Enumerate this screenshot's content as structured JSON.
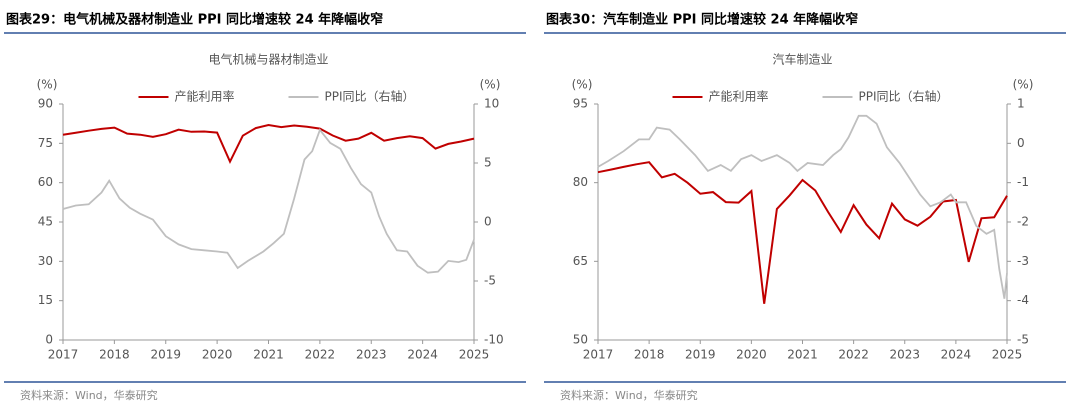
{
  "chart_data": [
    {
      "type": "line",
      "caption": "图表29：电气机械及器材制造业 PPI 同比增速较 24 年降幅收窄",
      "title": "电气机械与器材制造业",
      "source": "资料来源：Wind，华泰研究",
      "ylabel": "(%)",
      "y2label": "(%)",
      "xlim": [
        2017,
        2025
      ],
      "xticks": [
        2017,
        2018,
        2019,
        2020,
        2021,
        2022,
        2023,
        2024,
        2025
      ],
      "ylim": [
        0,
        90
      ],
      "yticks": [
        0,
        15,
        30,
        45,
        60,
        75,
        90
      ],
      "y2lim": [
        -10,
        10
      ],
      "y2ticks": [
        -10,
        -5,
        0,
        5,
        10
      ],
      "series": [
        {
          "name": "产能利用率",
          "color": "#c00000",
          "axis": "y",
          "x": [
            2017,
            2017.25,
            2017.5,
            2017.75,
            2018,
            2018.25,
            2018.5,
            2018.75,
            2019,
            2019.25,
            2019.5,
            2019.75,
            2020,
            2020.25,
            2020.5,
            2020.75,
            2021,
            2021.25,
            2021.5,
            2021.75,
            2022,
            2022.25,
            2022.5,
            2022.75,
            2023,
            2023.25,
            2023.5,
            2023.75,
            2024,
            2024.25,
            2024.5,
            2024.75,
            2025
          ],
          "values": [
            78.3,
            79,
            79.8,
            80.5,
            81,
            78.7,
            78.3,
            77.5,
            78.5,
            80.2,
            79.4,
            79.5,
            79.1,
            68,
            77.9,
            80.8,
            82,
            81.2,
            81.8,
            81.3,
            80.6,
            78,
            76,
            76.8,
            79,
            76,
            77,
            77.7,
            77,
            73,
            74.8,
            75.7,
            76.8
          ]
        },
        {
          "name": "PPI同比（右轴）",
          "color": "#bfbfbf",
          "axis": "y2",
          "x": [
            2017,
            2017.25,
            2017.5,
            2017.75,
            2017.9,
            2018.1,
            2018.3,
            2018.5,
            2018.75,
            2019,
            2019.25,
            2019.5,
            2019.75,
            2020,
            2020.2,
            2020.4,
            2020.6,
            2020.9,
            2021.1,
            2021.3,
            2021.5,
            2021.7,
            2021.85,
            2022,
            2022.2,
            2022.4,
            2022.6,
            2022.8,
            2023,
            2023.15,
            2023.3,
            2023.5,
            2023.7,
            2023.9,
            2024.1,
            2024.3,
            2024.5,
            2024.7,
            2024.85,
            2025
          ],
          "values": [
            1.1,
            1.4,
            1.5,
            2.5,
            3.5,
            2,
            1.2,
            0.7,
            0.2,
            -1.2,
            -1.9,
            -2.3,
            -2.4,
            -2.5,
            -2.6,
            -3.9,
            -3.3,
            -2.5,
            -1.8,
            -1,
            2,
            5.3,
            6,
            7.8,
            6.7,
            6.2,
            4.6,
            3.2,
            2.5,
            0.5,
            -1,
            -2.4,
            -2.5,
            -3.7,
            -4.3,
            -4.2,
            -3.3,
            -3.4,
            -3.2,
            -1.5
          ]
        }
      ]
    },
    {
      "type": "line",
      "caption": "图表30：汽车制造业 PPI 同比增速较 24 年降幅收窄",
      "title": "汽车制造业",
      "source": "资料来源：Wind，华泰研究",
      "ylabel": "(%)",
      "y2label": "(%)",
      "xlim": [
        2017,
        2025
      ],
      "xticks": [
        2017,
        2018,
        2019,
        2020,
        2021,
        2022,
        2023,
        2024,
        2025
      ],
      "ylim": [
        50,
        95
      ],
      "yticks": [
        50,
        65,
        80,
        95
      ],
      "y2lim": [
        -5,
        1
      ],
      "y2ticks": [
        -5,
        -4,
        -3,
        -2,
        -1,
        0,
        1
      ],
      "series": [
        {
          "name": "产能利用率",
          "color": "#c00000",
          "axis": "y",
          "x": [
            2017,
            2017.25,
            2017.5,
            2017.75,
            2018,
            2018.25,
            2018.5,
            2018.75,
            2019,
            2019.25,
            2019.5,
            2019.75,
            2020,
            2020.25,
            2020.5,
            2020.75,
            2021,
            2021.25,
            2021.5,
            2021.75,
            2022,
            2022.25,
            2022.5,
            2022.75,
            2023,
            2023.25,
            2023.5,
            2023.75,
            2024,
            2024.25,
            2024.5,
            2024.75,
            2025
          ],
          "values": [
            82,
            82.5,
            83,
            83.5,
            83.9,
            81,
            81.7,
            80,
            77.9,
            78.2,
            76.3,
            76.2,
            78.4,
            56.9,
            75,
            77.6,
            80.5,
            78.5,
            74.4,
            70.6,
            75.7,
            72,
            69.4,
            76,
            73,
            71.8,
            73.5,
            76.4,
            76.7,
            64.9,
            73.2,
            73.4,
            77.5
          ]
        },
        {
          "name": "PPI同比（右轴）",
          "color": "#bfbfbf",
          "axis": "y2",
          "x": [
            2017,
            2017.2,
            2017.5,
            2017.8,
            2018,
            2018.15,
            2018.4,
            2018.6,
            2018.9,
            2019.15,
            2019.4,
            2019.6,
            2019.8,
            2020,
            2020.2,
            2020.5,
            2020.75,
            2020.9,
            2021.1,
            2021.4,
            2021.6,
            2021.75,
            2021.9,
            2022.1,
            2022.25,
            2022.45,
            2022.65,
            2022.9,
            2023.1,
            2023.3,
            2023.5,
            2023.7,
            2023.9,
            2024,
            2024.2,
            2024.4,
            2024.6,
            2024.75,
            2024.85,
            2024.95,
            2025
          ],
          "values": [
            -0.6,
            -0.45,
            -0.2,
            0.1,
            0.1,
            0.4,
            0.35,
            0.1,
            -0.3,
            -0.7,
            -0.55,
            -0.7,
            -0.4,
            -0.3,
            -0.45,
            -0.3,
            -0.5,
            -0.7,
            -0.5,
            -0.55,
            -0.3,
            -0.15,
            0.15,
            0.7,
            0.7,
            0.5,
            -0.1,
            -0.5,
            -0.9,
            -1.3,
            -1.6,
            -1.5,
            -1.3,
            -1.5,
            -1.5,
            -2.1,
            -2.3,
            -2.2,
            -3.2,
            -3.95,
            -3.3
          ]
        }
      ]
    }
  ]
}
